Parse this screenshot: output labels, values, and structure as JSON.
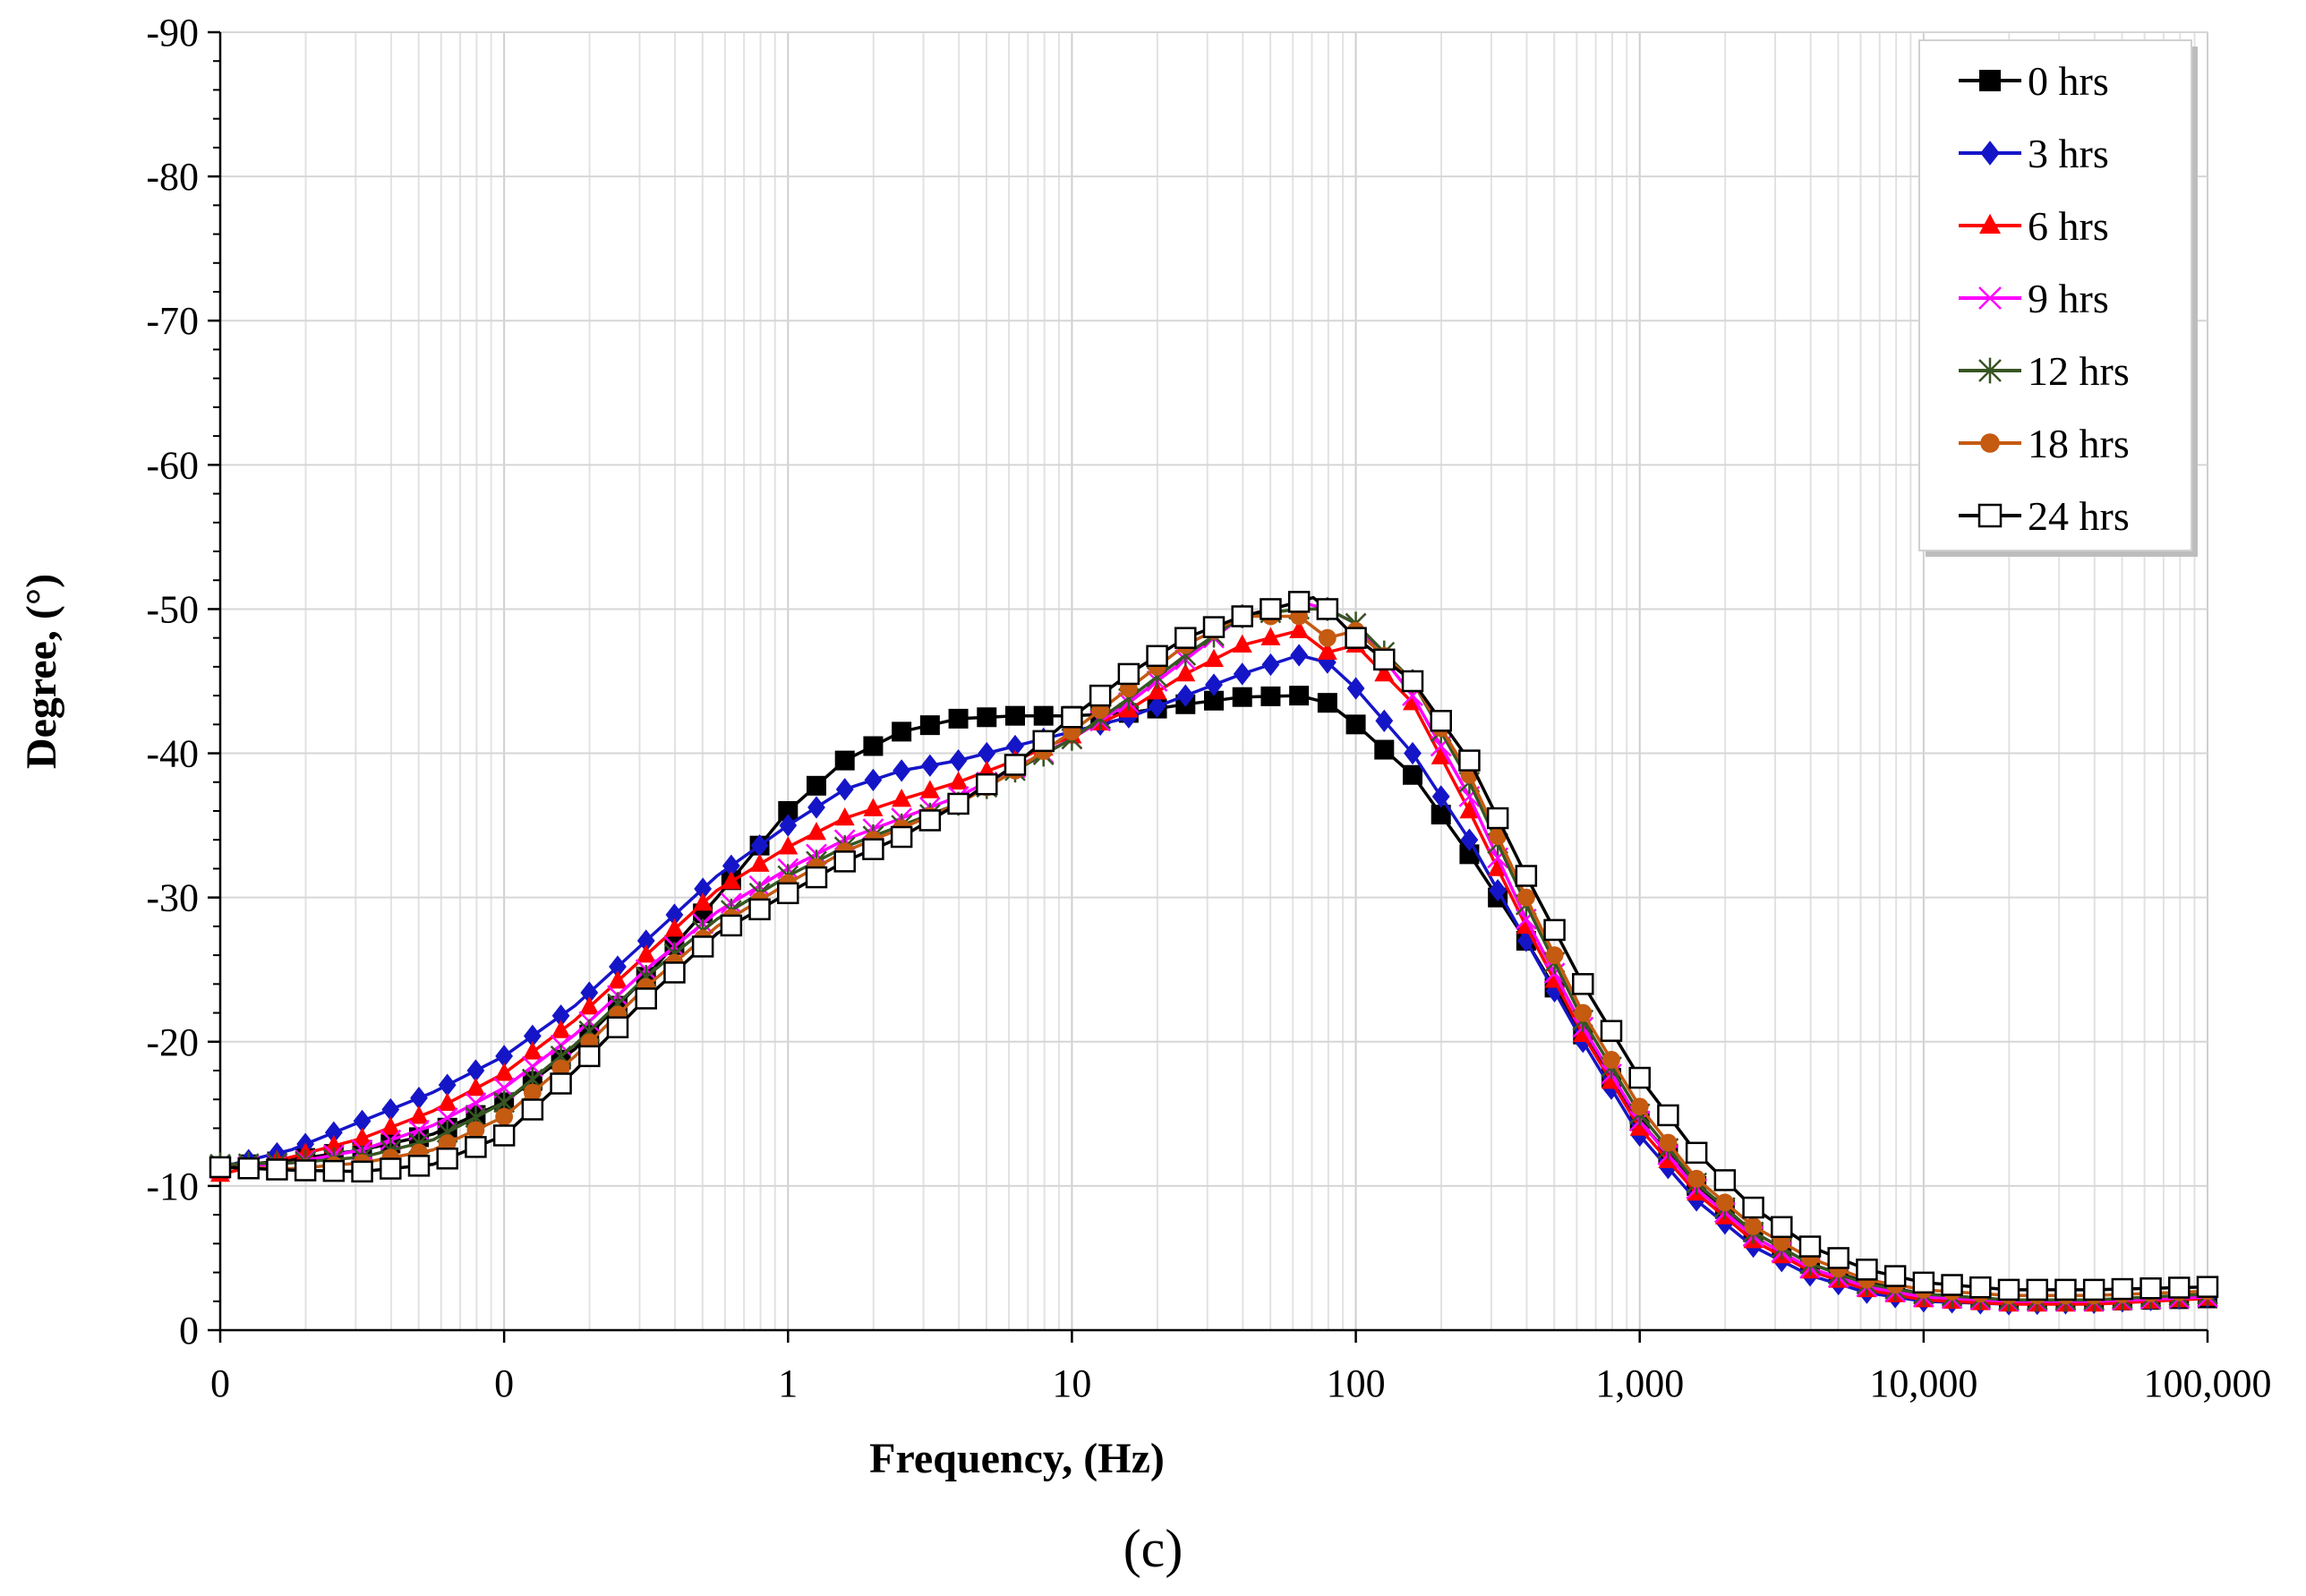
{
  "chart_data": {
    "type": "line",
    "title": "",
    "caption": "(c)",
    "xlabel": "Frequency, (Hz)",
    "ylabel": "Degree, (°)",
    "xscale": "log",
    "xlim": [
      0.01,
      100000
    ],
    "ylim": [
      0,
      -90
    ],
    "y_axis_inverted": true,
    "grid": true,
    "legend_position": "top-right",
    "x_ticks": [
      {
        "value": 0.01,
        "label": "0"
      },
      {
        "value": 0.1,
        "label": "0"
      },
      {
        "value": 1,
        "label": "1"
      },
      {
        "value": 10,
        "label": "10"
      },
      {
        "value": 100,
        "label": "100"
      },
      {
        "value": 1000,
        "label": "1,000"
      },
      {
        "value": 10000,
        "label": "10,000"
      },
      {
        "value": 100000,
        "label": "100,000"
      }
    ],
    "y_ticks": [
      {
        "value": 0,
        "label": "0"
      },
      {
        "value": -10,
        "label": "-10"
      },
      {
        "value": -20,
        "label": "-20"
      },
      {
        "value": -30,
        "label": "-30"
      },
      {
        "value": -40,
        "label": "-40"
      },
      {
        "value": -50,
        "label": "-50"
      },
      {
        "value": -60,
        "label": "-60"
      },
      {
        "value": -70,
        "label": "-70"
      },
      {
        "value": -80,
        "label": "-80"
      },
      {
        "value": -90,
        "label": "-90"
      }
    ],
    "series": [
      {
        "name": "0 hrs",
        "color": "#000000",
        "marker": "square-filled",
        "points": [
          [
            -2,
            -11.3
          ],
          [
            -1.75,
            -11.8
          ],
          [
            -1.5,
            -12.5
          ],
          [
            -1.25,
            -13.6
          ],
          [
            -1,
            -15.8
          ],
          [
            -0.75,
            -19.5
          ],
          [
            -0.5,
            -24.5
          ],
          [
            -0.25,
            -30
          ],
          [
            0,
            -36
          ],
          [
            0.2,
            -39.5
          ],
          [
            0.4,
            -41.5
          ],
          [
            0.6,
            -42.4
          ],
          [
            0.8,
            -42.6
          ],
          [
            1,
            -42.6
          ],
          [
            1.2,
            -42.8
          ],
          [
            1.4,
            -43.4
          ],
          [
            1.6,
            -43.9
          ],
          [
            1.8,
            -44
          ],
          [
            1.9,
            -43.5
          ],
          [
            2,
            -42
          ],
          [
            2.2,
            -38.5
          ],
          [
            2.4,
            -33
          ],
          [
            2.6,
            -27
          ],
          [
            2.8,
            -20.5
          ],
          [
            3,
            -14.5
          ],
          [
            3.2,
            -10
          ],
          [
            3.4,
            -6.8
          ],
          [
            3.6,
            -4.6
          ],
          [
            3.8,
            -3.3
          ],
          [
            4,
            -2.5
          ],
          [
            4.3,
            -2.1
          ],
          [
            4.6,
            -2
          ],
          [
            5,
            -2.2
          ]
        ]
      },
      {
        "name": "3 hrs",
        "color": "#1515c8",
        "marker": "diamond-filled",
        "points": [
          [
            -2,
            -11.3
          ],
          [
            -1.75,
            -12.5
          ],
          [
            -1.5,
            -14.5
          ],
          [
            -1.25,
            -16.5
          ],
          [
            -1,
            -19
          ],
          [
            -0.75,
            -22.5
          ],
          [
            -0.5,
            -27
          ],
          [
            -0.25,
            -31.5
          ],
          [
            0,
            -35
          ],
          [
            0.2,
            -37.5
          ],
          [
            0.4,
            -38.8
          ],
          [
            0.6,
            -39.5
          ],
          [
            0.8,
            -40.5
          ],
          [
            1,
            -41.5
          ],
          [
            1.2,
            -42.5
          ],
          [
            1.4,
            -44
          ],
          [
            1.6,
            -45.5
          ],
          [
            1.8,
            -46.8
          ],
          [
            1.9,
            -46.3
          ],
          [
            2,
            -44.5
          ],
          [
            2.2,
            -40
          ],
          [
            2.4,
            -34
          ],
          [
            2.6,
            -27
          ],
          [
            2.8,
            -20
          ],
          [
            3,
            -13.5
          ],
          [
            3.2,
            -9
          ],
          [
            3.4,
            -5.8
          ],
          [
            3.6,
            -3.8
          ],
          [
            3.8,
            -2.6
          ],
          [
            4,
            -2
          ],
          [
            4.3,
            -1.8
          ],
          [
            4.6,
            -1.9
          ],
          [
            5,
            -2.3
          ]
        ]
      },
      {
        "name": "6 hrs",
        "color": "#ff0000",
        "marker": "triangle-filled",
        "points": [
          [
            -2,
            -10.8
          ],
          [
            -1.75,
            -12
          ],
          [
            -1.5,
            -13.3
          ],
          [
            -1.25,
            -15.2
          ],
          [
            -1,
            -17.8
          ],
          [
            -0.75,
            -21.5
          ],
          [
            -0.5,
            -26
          ],
          [
            -0.25,
            -30.5
          ],
          [
            0,
            -33.5
          ],
          [
            0.2,
            -35.5
          ],
          [
            0.4,
            -36.8
          ],
          [
            0.6,
            -38
          ],
          [
            0.8,
            -39.5
          ],
          [
            1,
            -41.2
          ],
          [
            1.2,
            -43
          ],
          [
            1.4,
            -45.5
          ],
          [
            1.6,
            -47.5
          ],
          [
            1.8,
            -48.5
          ],
          [
            1.9,
            -47
          ],
          [
            2,
            -47.5
          ],
          [
            2.2,
            -43.5
          ],
          [
            2.4,
            -36
          ],
          [
            2.6,
            -28
          ],
          [
            2.8,
            -20.5
          ],
          [
            3,
            -14
          ],
          [
            3.2,
            -9.5
          ],
          [
            3.4,
            -6.2
          ],
          [
            3.6,
            -4.1
          ],
          [
            3.8,
            -2.8
          ],
          [
            4,
            -2.1
          ],
          [
            4.3,
            -1.8
          ],
          [
            4.6,
            -1.8
          ],
          [
            5,
            -2.2
          ]
        ]
      },
      {
        "name": "9 hrs",
        "color": "#ff00ff",
        "marker": "x",
        "points": [
          [
            -2,
            -11.2
          ],
          [
            -1.75,
            -11.6
          ],
          [
            -1.5,
            -12.5
          ],
          [
            -1.25,
            -14.2
          ],
          [
            -1,
            -16.8
          ],
          [
            -0.75,
            -20.5
          ],
          [
            -0.5,
            -25
          ],
          [
            -0.25,
            -29
          ],
          [
            0,
            -32
          ],
          [
            0.2,
            -34
          ],
          [
            0.4,
            -35.5
          ],
          [
            0.6,
            -37
          ],
          [
            0.8,
            -39
          ],
          [
            1,
            -41
          ],
          [
            1.2,
            -43.5
          ],
          [
            1.4,
            -46.5
          ],
          [
            1.6,
            -49.5
          ],
          [
            1.8,
            -50.5
          ],
          [
            1.9,
            -50
          ],
          [
            2,
            -49
          ],
          [
            2.2,
            -44
          ],
          [
            2.4,
            -37
          ],
          [
            2.6,
            -28.5
          ],
          [
            2.8,
            -21
          ],
          [
            3,
            -14.5
          ],
          [
            3.2,
            -9.8
          ],
          [
            3.4,
            -6.5
          ],
          [
            3.6,
            -4.3
          ],
          [
            3.8,
            -3
          ],
          [
            4,
            -2.3
          ],
          [
            4.3,
            -2
          ],
          [
            4.6,
            -2
          ],
          [
            5,
            -2.3
          ]
        ]
      },
      {
        "name": "12 hrs",
        "color": "#375623",
        "marker": "asterisk",
        "points": [
          [
            -2,
            -11.5
          ],
          [
            -1.75,
            -11.6
          ],
          [
            -1.5,
            -12
          ],
          [
            -1.25,
            -13.2
          ],
          [
            -1,
            -15.8
          ],
          [
            -0.75,
            -19.8
          ],
          [
            -0.5,
            -24.5
          ],
          [
            -0.25,
            -28.5
          ],
          [
            0,
            -31.5
          ],
          [
            0.2,
            -33.5
          ],
          [
            0.4,
            -35
          ],
          [
            0.6,
            -36.5
          ],
          [
            0.8,
            -38.8
          ],
          [
            1,
            -41
          ],
          [
            1.2,
            -43.8
          ],
          [
            1.4,
            -46.8
          ],
          [
            1.6,
            -49.5
          ],
          [
            1.8,
            -50
          ],
          [
            1.9,
            -50
          ],
          [
            2,
            -49
          ],
          [
            2.2,
            -45
          ],
          [
            2.4,
            -38
          ],
          [
            2.6,
            -29.5
          ],
          [
            2.8,
            -21.5
          ],
          [
            3,
            -15
          ],
          [
            3.2,
            -10.2
          ],
          [
            3.4,
            -6.8
          ],
          [
            3.6,
            -4.6
          ],
          [
            3.8,
            -3.2
          ],
          [
            4,
            -2.5
          ],
          [
            4.3,
            -2.1
          ],
          [
            4.6,
            -2.1
          ],
          [
            5,
            -2.5
          ]
        ]
      },
      {
        "name": "18 hrs",
        "color": "#c55a11",
        "marker": "circle-filled",
        "points": [
          [
            -2,
            -11.3
          ],
          [
            -1.75,
            -11.2
          ],
          [
            -1.5,
            -11.6
          ],
          [
            -1.25,
            -12.5
          ],
          [
            -1,
            -14.8
          ],
          [
            -0.75,
            -19
          ],
          [
            -0.5,
            -23.8
          ],
          [
            -0.25,
            -28
          ],
          [
            0,
            -31
          ],
          [
            0.2,
            -33.2
          ],
          [
            0.4,
            -34.8
          ],
          [
            0.6,
            -36.5
          ],
          [
            0.8,
            -38.8
          ],
          [
            1,
            -41.5
          ],
          [
            1.2,
            -44.5
          ],
          [
            1.4,
            -47.5
          ],
          [
            1.6,
            -49.5
          ],
          [
            1.8,
            -49.5
          ],
          [
            1.9,
            -48
          ],
          [
            2,
            -48.5
          ],
          [
            2.2,
            -45
          ],
          [
            2.4,
            -38.5
          ],
          [
            2.6,
            -30
          ],
          [
            2.8,
            -22
          ],
          [
            3,
            -15.5
          ],
          [
            3.2,
            -10.5
          ],
          [
            3.4,
            -7.2
          ],
          [
            3.6,
            -5
          ],
          [
            3.8,
            -3.5
          ],
          [
            4,
            -2.8
          ],
          [
            4.3,
            -2.4
          ],
          [
            4.6,
            -2.4
          ],
          [
            5,
            -2.7
          ]
        ]
      },
      {
        "name": "24 hrs",
        "color": "#000000",
        "marker": "square-open",
        "points": [
          [
            -2,
            -11.3
          ],
          [
            -1.75,
            -11.1
          ],
          [
            -1.5,
            -11
          ],
          [
            -1.25,
            -11.5
          ],
          [
            -1,
            -13.5
          ],
          [
            -0.75,
            -18
          ],
          [
            -0.5,
            -23
          ],
          [
            -0.25,
            -27.5
          ],
          [
            0,
            -30.3
          ],
          [
            0.2,
            -32.5
          ],
          [
            0.4,
            -34.2
          ],
          [
            0.6,
            -36.5
          ],
          [
            0.8,
            -39.2
          ],
          [
            1,
            -42.5
          ],
          [
            1.2,
            -45.5
          ],
          [
            1.4,
            -48
          ],
          [
            1.6,
            -49.5
          ],
          [
            1.8,
            -50.5
          ],
          [
            1.85,
            -50.8
          ],
          [
            1.9,
            -50
          ],
          [
            2,
            -48
          ],
          [
            2.2,
            -45
          ],
          [
            2.4,
            -39.5
          ],
          [
            2.6,
            -31.5
          ],
          [
            2.8,
            -24
          ],
          [
            3,
            -17.5
          ],
          [
            3.2,
            -12.3
          ],
          [
            3.4,
            -8.5
          ],
          [
            3.6,
            -5.8
          ],
          [
            3.8,
            -4.2
          ],
          [
            4,
            -3.3
          ],
          [
            4.3,
            -2.8
          ],
          [
            4.6,
            -2.8
          ],
          [
            5,
            -3
          ]
        ]
      }
    ]
  }
}
